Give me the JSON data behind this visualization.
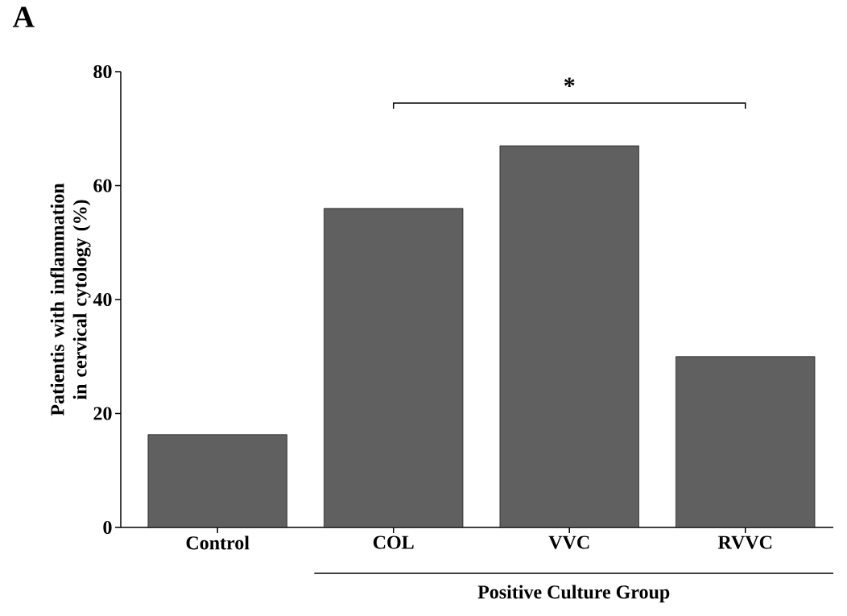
{
  "chart_data": {
    "type": "bar",
    "ylabel": "Patientis with inflammation in cervical cytology (%)",
    "categories": [
      "Control",
      "COL",
      "VVC",
      "RVVC"
    ],
    "values": [
      16.3,
      56,
      67,
      30
    ],
    "color": "#606060",
    "ylim": [
      0,
      80
    ],
    "yticks": [
      0,
      20,
      40,
      60,
      80
    ],
    "annotations": [
      "A",
      "*",
      "Positive Culture Group"
    ],
    "grid": false
  }
}
